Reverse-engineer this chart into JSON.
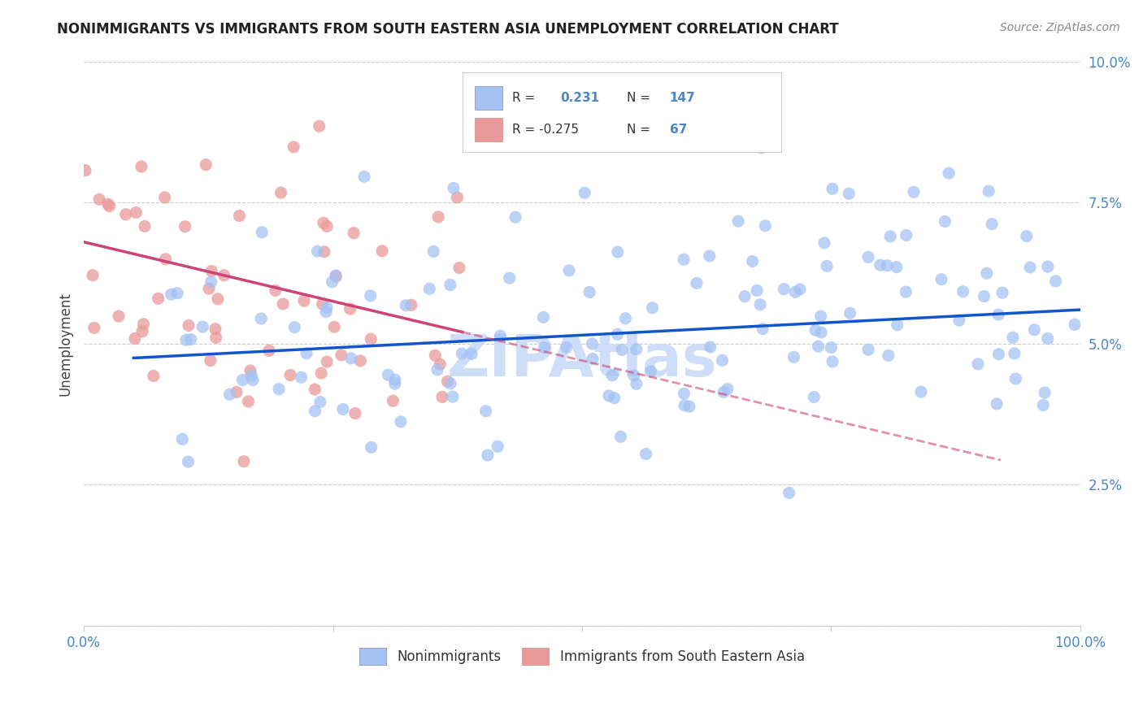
{
  "title": "NONIMMIGRANTS VS IMMIGRANTS FROM SOUTH EASTERN ASIA UNEMPLOYMENT CORRELATION CHART",
  "source": "Source: ZipAtlas.com",
  "ylabel": "Unemployment",
  "xlim": [
    0.0,
    1.0
  ],
  "ylim": [
    0.0,
    0.1
  ],
  "xticks": [
    0.0,
    0.25,
    0.5,
    0.75,
    1.0
  ],
  "xtick_labels": [
    "0.0%",
    "",
    "",
    "",
    "100.0%"
  ],
  "yticks": [
    0.0,
    0.025,
    0.05,
    0.075,
    0.1
  ],
  "ytick_labels": [
    "",
    "2.5%",
    "5.0%",
    "7.5%",
    "10.0%"
  ],
  "blue_color": "#a4c2f4",
  "pink_color": "#ea9999",
  "blue_line_color": "#1155cc",
  "pink_line_color": "#cc4477",
  "watermark_color": "#c9daf8",
  "legend1_label": "Nonimmigrants",
  "legend2_label": "Immigrants from South Eastern Asia",
  "blue_R": 0.231,
  "blue_N": 147,
  "pink_R": -0.275,
  "pink_N": 67,
  "blue_intercept": 0.047,
  "blue_slope": 0.009,
  "pink_intercept": 0.068,
  "pink_slope": -0.042,
  "background_color": "#ffffff",
  "grid_color": "#cccccc",
  "tick_color": "#4a86c8",
  "title_color": "#222222",
  "source_color": "#888888",
  "ylabel_color": "#444444"
}
